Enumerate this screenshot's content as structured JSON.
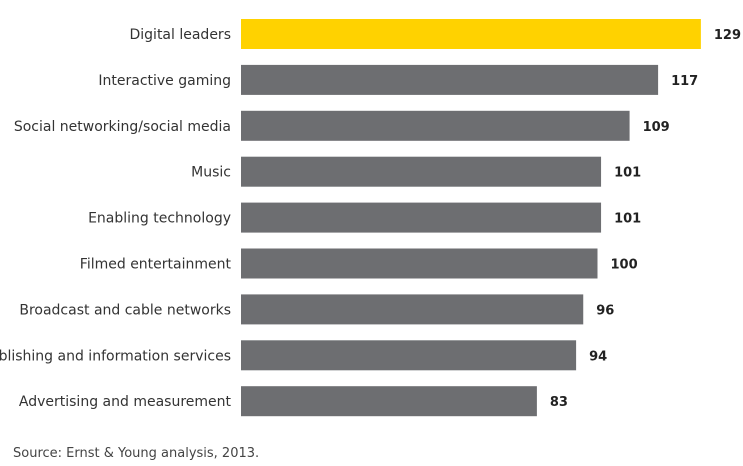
{
  "chart_data": {
    "type": "bar",
    "orientation": "horizontal",
    "categories": [
      "Digital leaders",
      "Interactive gaming",
      "Social networking/social media",
      "Music",
      "Enabling technology",
      "Filmed entertainment",
      "Broadcast and cable networks",
      "Publishing and information services",
      "Advertising and measurement"
    ],
    "values": [
      129,
      117,
      109,
      101,
      101,
      100,
      96,
      94,
      83
    ],
    "highlight_index": 0,
    "colors": {
      "highlight": "#FFD200",
      "bar": "#6D6E71"
    },
    "title": "",
    "xlabel": "",
    "ylabel": "",
    "grid": false,
    "legend": "none"
  },
  "footer": {
    "source": "Source: Ernst & Young analysis, 2013."
  }
}
